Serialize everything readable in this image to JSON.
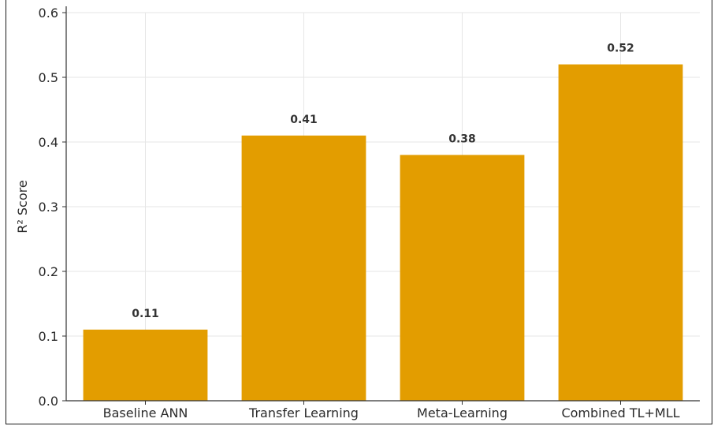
{
  "chart_data": {
    "type": "bar",
    "categories": [
      "Baseline ANN",
      "Transfer Learning",
      "Meta-Learning",
      "Combined TL+MLL"
    ],
    "values": [
      0.11,
      0.41,
      0.38,
      0.52
    ],
    "value_labels": [
      "0.11",
      "0.41",
      "0.38",
      "0.52"
    ],
    "title": "",
    "xlabel": "",
    "ylabel": "R² Score",
    "ylim": [
      0,
      0.6
    ],
    "yticks": [
      0.0,
      0.1,
      0.2,
      0.3,
      0.4,
      0.5,
      0.6
    ],
    "ytick_labels": [
      "0.0",
      "0.1",
      "0.2",
      "0.3",
      "0.4",
      "0.5",
      "0.6"
    ],
    "grid": true,
    "bar_color": "#e39d00",
    "grid_color": "#e6e6e6",
    "axis_color": "#333333"
  }
}
